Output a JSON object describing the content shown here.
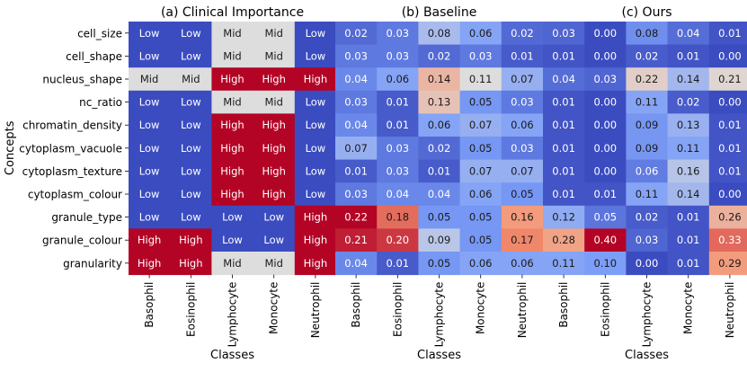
{
  "chart_data": [
    {
      "type": "heatmap",
      "title": "(a) Clinical Importance",
      "xlabel": "Classes",
      "ylabel": "Concepts",
      "categories": [
        "Basophil",
        "Eosinophil",
        "Lymphocyte",
        "Monocyte",
        "Neutrophil"
      ],
      "rows": [
        "cell_size",
        "cell_shape",
        "nucleus_shape",
        "nc_ratio",
        "chromatin_density",
        "cytoplasm_vacuole",
        "cytoplasm_texture",
        "cytoplasm_colour",
        "granule_type",
        "granule_colour",
        "granularity"
      ],
      "values": [
        [
          "Low",
          "Low",
          "Mid",
          "Mid",
          "Low"
        ],
        [
          "Low",
          "Low",
          "Mid",
          "Mid",
          "Low"
        ],
        [
          "Mid",
          "Mid",
          "High",
          "High",
          "High"
        ],
        [
          "Low",
          "Low",
          "Mid",
          "Mid",
          "Low"
        ],
        [
          "Low",
          "Low",
          "High",
          "High",
          "Low"
        ],
        [
          "Low",
          "Low",
          "High",
          "High",
          "Low"
        ],
        [
          "Low",
          "Low",
          "High",
          "High",
          "Low"
        ],
        [
          "Low",
          "Low",
          "High",
          "High",
          "Low"
        ],
        [
          "Low",
          "Low",
          "Low",
          "Low",
          "High"
        ],
        [
          "High",
          "High",
          "Low",
          "Low",
          "High"
        ],
        [
          "High",
          "High",
          "Mid",
          "Mid",
          "High"
        ]
      ],
      "level_colors": {
        "Low": "#3b4cc0",
        "Mid": "#dddddd",
        "High": "#b40426"
      }
    },
    {
      "type": "heatmap",
      "title": "(b) Baseline",
      "xlabel": "Classes",
      "categories": [
        "Basophil",
        "Eosinophil",
        "Lymphocyte",
        "Monocyte",
        "Neutrophil"
      ],
      "values": [
        [
          "0.02",
          "0.03",
          "0.08",
          "0.06",
          "0.02"
        ],
        [
          "0.03",
          "0.03",
          "0.02",
          "0.03",
          "0.01"
        ],
        [
          "0.04",
          "0.06",
          "0.14",
          "0.11",
          "0.07"
        ],
        [
          "0.03",
          "0.01",
          "0.13",
          "0.05",
          "0.03"
        ],
        [
          "0.04",
          "0.01",
          "0.06",
          "0.07",
          "0.06"
        ],
        [
          "0.07",
          "0.03",
          "0.02",
          "0.05",
          "0.03"
        ],
        [
          "0.01",
          "0.03",
          "0.01",
          "0.07",
          "0.07"
        ],
        [
          "0.03",
          "0.04",
          "0.04",
          "0.06",
          "0.05"
        ],
        [
          "0.22",
          "0.18",
          "0.05",
          "0.05",
          "0.16"
        ],
        [
          "0.21",
          "0.20",
          "0.09",
          "0.05",
          "0.17"
        ],
        [
          "0.04",
          "0.01",
          "0.05",
          "0.06",
          "0.06"
        ]
      ]
    },
    {
      "type": "heatmap",
      "title": "(c) Ours",
      "xlabel": "Classes",
      "categories": [
        "Basophil",
        "Eosinophil",
        "Lymphocyte",
        "Monocyte",
        "Neutrophil"
      ],
      "values": [
        [
          "0.03",
          "0.00",
          "0.08",
          "0.04",
          "0.01"
        ],
        [
          "0.01",
          "0.00",
          "0.02",
          "0.01",
          "0.00"
        ],
        [
          "0.04",
          "0.03",
          "0.22",
          "0.14",
          "0.21"
        ],
        [
          "0.01",
          "0.00",
          "0.11",
          "0.02",
          "0.00"
        ],
        [
          "0.01",
          "0.00",
          "0.09",
          "0.13",
          "0.01"
        ],
        [
          "0.01",
          "0.00",
          "0.09",
          "0.11",
          "0.01"
        ],
        [
          "0.01",
          "0.00",
          "0.06",
          "0.16",
          "0.01"
        ],
        [
          "0.01",
          "0.01",
          "0.11",
          "0.14",
          "0.00"
        ],
        [
          "0.12",
          "0.05",
          "0.02",
          "0.01",
          "0.26"
        ],
        [
          "0.28",
          "0.40",
          "0.03",
          "0.01",
          "0.33"
        ],
        [
          "0.11",
          "0.10",
          "0.00",
          "0.01",
          "0.29"
        ]
      ]
    }
  ]
}
